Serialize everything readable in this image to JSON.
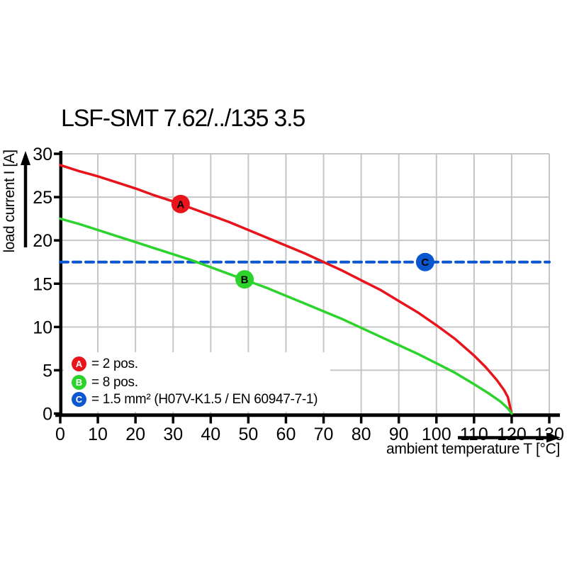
{
  "page": {
    "title": "LSF-SMT 7.62/../135 3.5"
  },
  "axes": {
    "x_label": "ambient temperature T [°C]",
    "y_label": "load current I [A]"
  },
  "legend": {
    "items": [
      {
        "letter": "A",
        "text": "= 2 pos.",
        "color": "#e8131b"
      },
      {
        "letter": "B",
        "text": "= 8 pos.",
        "color": "#2cd32c"
      },
      {
        "letter": "C",
        "text": "= 1.5 mm² (H07V-K1.5 / EN 60947-7-1)",
        "color": "#0b57d0"
      }
    ]
  },
  "colors": {
    "curve_a_red": "#e8131b",
    "curve_b_green": "#2cd32c",
    "line_c_blue": "#0b57d0",
    "gridline": "#c6c6c6",
    "axis": "#000000",
    "background": "#ffffff"
  },
  "chart_data": {
    "type": "line",
    "title": "LSF-SMT 7.62/../135 3.5",
    "xlabel": "ambient temperature T [°C]",
    "ylabel": "load current I [A]",
    "xlim": [
      0,
      130
    ],
    "ylim": [
      0,
      30
    ],
    "x_ticks": [
      0,
      10,
      20,
      30,
      40,
      50,
      60,
      70,
      80,
      90,
      100,
      110,
      120,
      130
    ],
    "y_ticks": [
      0,
      5,
      10,
      15,
      20,
      25,
      30
    ],
    "grid": true,
    "legend_position": "lower-left",
    "series": [
      {
        "name": "A",
        "label": "2 pos.",
        "color": "#e8131b",
        "style": "solid",
        "points": [
          [
            0,
            28.7
          ],
          [
            5,
            28.0
          ],
          [
            10,
            27.4
          ],
          [
            15,
            26.7
          ],
          [
            20,
            26.0
          ],
          [
            25,
            25.2
          ],
          [
            30,
            24.5
          ],
          [
            35,
            23.7
          ],
          [
            40,
            22.9
          ],
          [
            45,
            22.1
          ],
          [
            50,
            21.2
          ],
          [
            55,
            20.3
          ],
          [
            60,
            19.4
          ],
          [
            65,
            18.5
          ],
          [
            70,
            17.5
          ],
          [
            75,
            16.5
          ],
          [
            80,
            15.4
          ],
          [
            85,
            14.3
          ],
          [
            90,
            13.0
          ],
          [
            95,
            11.7
          ],
          [
            100,
            10.2
          ],
          [
            105,
            8.6
          ],
          [
            110,
            6.7
          ],
          [
            113,
            5.4
          ],
          [
            116,
            3.9
          ],
          [
            118,
            2.7
          ],
          [
            119,
            1.9
          ],
          [
            120,
            0
          ]
        ]
      },
      {
        "name": "B",
        "label": "8 pos.",
        "color": "#2cd32c",
        "style": "solid",
        "points": [
          [
            0,
            22.5
          ],
          [
            5,
            21.9
          ],
          [
            10,
            21.2
          ],
          [
            15,
            20.5
          ],
          [
            20,
            19.8
          ],
          [
            25,
            19.1
          ],
          [
            30,
            18.4
          ],
          [
            35,
            17.7
          ],
          [
            40,
            16.9
          ],
          [
            45,
            16.1
          ],
          [
            50,
            15.3
          ],
          [
            55,
            14.5
          ],
          [
            60,
            13.6
          ],
          [
            65,
            12.7
          ],
          [
            70,
            11.8
          ],
          [
            75,
            10.9
          ],
          [
            80,
            9.9
          ],
          [
            85,
            8.9
          ],
          [
            90,
            7.9
          ],
          [
            95,
            6.9
          ],
          [
            100,
            5.8
          ],
          [
            105,
            4.7
          ],
          [
            110,
            3.4
          ],
          [
            114,
            2.3
          ],
          [
            117,
            1.4
          ],
          [
            119,
            0.6
          ],
          [
            120,
            0
          ]
        ]
      },
      {
        "name": "C",
        "label": "1.5 mm² (H07V-K1.5 / EN 60947-7-1)",
        "color": "#0b57d0",
        "style": "dashed",
        "points": [
          [
            0,
            17.5
          ],
          [
            130,
            17.5
          ]
        ]
      }
    ],
    "markers": [
      {
        "letter": "A",
        "t": 32,
        "i": 24.2,
        "color": "#e8131b"
      },
      {
        "letter": "B",
        "t": 49,
        "i": 15.5,
        "color": "#2cd32c"
      },
      {
        "letter": "C",
        "t": 97,
        "i": 17.5,
        "color": "#0b57d0"
      }
    ]
  }
}
